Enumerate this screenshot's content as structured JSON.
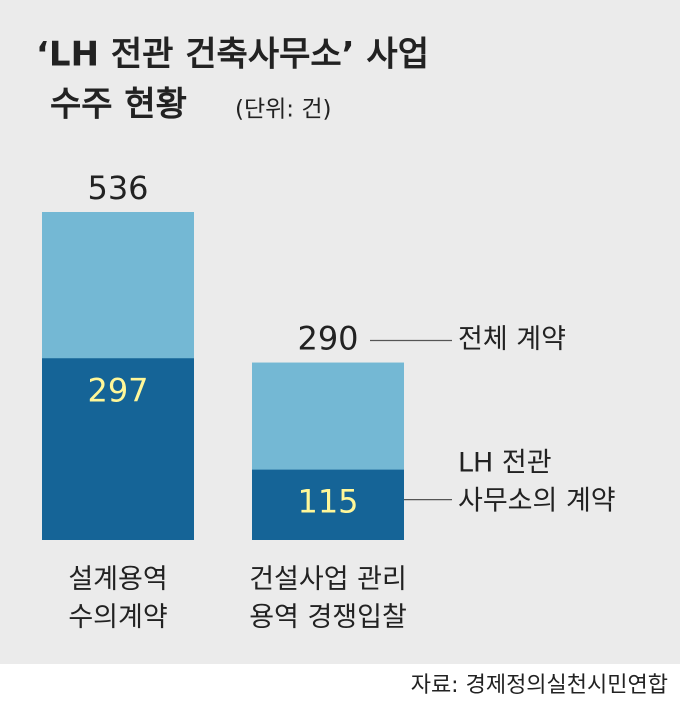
{
  "chart_data": {
    "type": "bar",
    "title": "‘LH 전관 건축사무소’ 사업",
    "subtitle": "수주 현황",
    "unit": "(단위: 건)",
    "categories": [
      "설계용역\n수의계약",
      "건설사업 관리\n용역 경쟁입찰"
    ],
    "series": [
      {
        "name": "전체 계약",
        "color": "#74b8d4",
        "values": [
          536,
          290
        ]
      },
      {
        "name": "LH 전관\n사무소의 계약",
        "color": "#156497",
        "values": [
          297,
          115
        ]
      }
    ],
    "source": "자료: 경제정의실천시민연합"
  }
}
